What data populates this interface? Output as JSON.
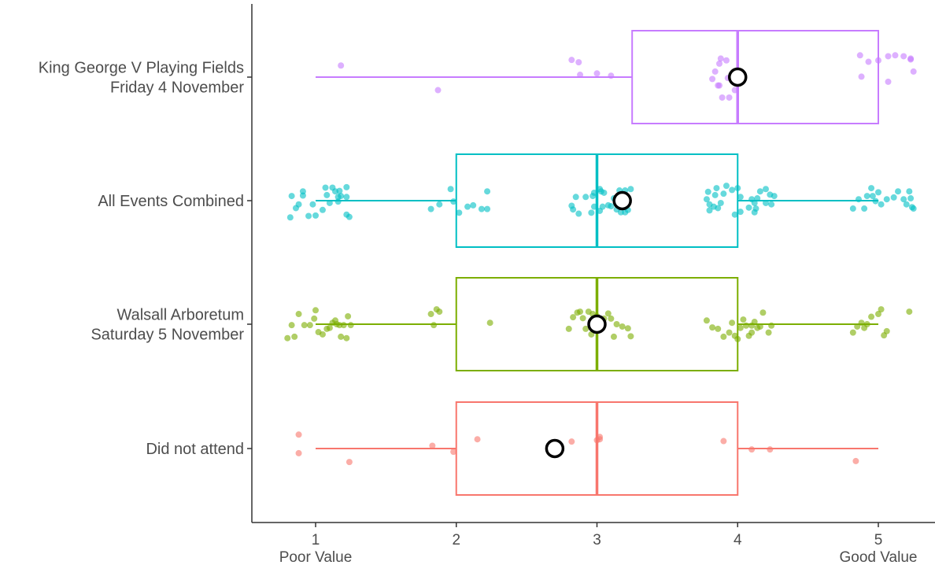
{
  "chart_data": {
    "type": "box",
    "orientation": "horizontal",
    "xlim": [
      0.55,
      5.4
    ],
    "x_ticks": [
      {
        "value": 1,
        "label": "1",
        "sublabel": "Poor Value"
      },
      {
        "value": 2,
        "label": "2",
        "sublabel": ""
      },
      {
        "value": 3,
        "label": "3",
        "sublabel": ""
      },
      {
        "value": 4,
        "label": "4",
        "sublabel": ""
      },
      {
        "value": 5,
        "label": "5",
        "sublabel": "Good Value"
      }
    ],
    "grid": false,
    "legend": "none",
    "groups": [
      {
        "label_lines": [
          "King George V Playing Fields",
          "Friday 4 November"
        ],
        "color": "#c77cff",
        "whisker_low": 1,
        "q1": 3.25,
        "median": 4,
        "q3": 5,
        "whisker_high": 5,
        "mean": 4,
        "points": [
          [
            1.18,
            -0.25
          ],
          [
            1.87,
            0.28
          ],
          [
            2.82,
            -0.37
          ],
          [
            2.87,
            -0.32
          ],
          [
            2.88,
            -0.05
          ],
          [
            3.0,
            -0.08
          ],
          [
            3.1,
            -0.03
          ],
          [
            3.82,
            0.04
          ],
          [
            3.84,
            -0.12
          ],
          [
            3.86,
            0.18
          ],
          [
            3.87,
            -0.29
          ],
          [
            3.88,
            -0.4
          ],
          [
            3.89,
            0.44
          ],
          [
            3.92,
            -0.36
          ],
          [
            3.93,
            0.02
          ],
          [
            3.94,
            0.44
          ],
          [
            3.98,
            0.28
          ],
          [
            3.87,
            0.18
          ],
          [
            4.88,
            -0.01
          ],
          [
            4.93,
            -0.33
          ],
          [
            4.87,
            -0.47
          ],
          [
            5.0,
            -0.36
          ],
          [
            5.07,
            0.1
          ],
          [
            5.07,
            -0.45
          ],
          [
            5.12,
            -0.47
          ],
          [
            5.18,
            -0.45
          ],
          [
            5.23,
            -0.38
          ],
          [
            5.23,
            -0.4
          ],
          [
            5.25,
            -0.12
          ]
        ]
      },
      {
        "label_lines": [
          "All Events Combined"
        ],
        "color": "#00bfc4",
        "whisker_low": 1,
        "q1": 2,
        "median": 3,
        "q3": 4,
        "whisker_high": 5,
        "mean": 3.18,
        "points": [
          [
            0.82,
            0.36
          ],
          [
            0.86,
            0.16
          ],
          [
            0.88,
            0.08
          ],
          [
            0.91,
            -0.11
          ],
          [
            0.83,
            -0.1
          ],
          [
            0.95,
            0.33
          ],
          [
            0.91,
            -0.2
          ],
          [
            1.0,
            0.32
          ],
          [
            0.98,
            0.08
          ],
          [
            1.05,
            0.2
          ],
          [
            1.1,
            0.05
          ],
          [
            1.08,
            -0.12
          ],
          [
            1.14,
            -0.2
          ],
          [
            1.16,
            -0.08
          ],
          [
            1.18,
            -0.1
          ],
          [
            1.22,
            -0.08
          ],
          [
            1.12,
            -0.28
          ],
          [
            1.07,
            -0.28
          ],
          [
            1.17,
            -0.21
          ],
          [
            1.22,
            -0.29
          ],
          [
            1.22,
            0.3
          ],
          [
            1.24,
            0.35
          ],
          [
            1.16,
            0.02
          ],
          [
            1.82,
            0.18
          ],
          [
            1.88,
            0.08
          ],
          [
            1.98,
            0.02
          ],
          [
            1.96,
            -0.25
          ],
          [
            2.02,
            0.26
          ],
          [
            2.08,
            0.13
          ],
          [
            2.12,
            0.1
          ],
          [
            2.18,
            0.18
          ],
          [
            2.22,
            0.18
          ],
          [
            2.22,
            -0.2
          ],
          [
            2.83,
            0.19
          ],
          [
            2.87,
            0.28
          ],
          [
            2.82,
            0.11
          ],
          [
            2.85,
            -0.08
          ],
          [
            2.92,
            -0.08
          ],
          [
            2.96,
            0.26
          ],
          [
            2.98,
            0.13
          ],
          [
            3.02,
            0.22
          ],
          [
            2.97,
            -0.1
          ],
          [
            3.04,
            0.13
          ],
          [
            3.08,
            0.1
          ],
          [
            3.1,
            0.12
          ],
          [
            3.14,
            0.19
          ],
          [
            3.17,
            0.25
          ],
          [
            3.2,
            0.25
          ],
          [
            3.22,
            0.2
          ],
          [
            3.18,
            0.09
          ],
          [
            3.03,
            -0.2
          ],
          [
            3.12,
            -0.05
          ],
          [
            3.16,
            -0.22
          ],
          [
            3.2,
            -0.22
          ],
          [
            3.24,
            -0.25
          ],
          [
            3.05,
            -0.17
          ],
          [
            2.98,
            -0.17
          ],
          [
            3.02,
            -0.25
          ],
          [
            3.8,
            0.21
          ],
          [
            3.83,
            0.13
          ],
          [
            3.78,
            -0.03
          ],
          [
            3.8,
            0.08
          ],
          [
            3.86,
            0.16
          ],
          [
            3.88,
            0.05
          ],
          [
            3.84,
            -0.12
          ],
          [
            3.85,
            -0.27
          ],
          [
            3.79,
            -0.19
          ],
          [
            3.9,
            -0.15
          ],
          [
            3.92,
            -0.32
          ],
          [
            3.96,
            -0.23
          ],
          [
            4.0,
            -0.27
          ],
          [
            4.02,
            -0.08
          ],
          [
            4.02,
            0.24
          ],
          [
            4.08,
            0.15
          ],
          [
            4.12,
            0.05
          ],
          [
            4.14,
            -0.05
          ],
          [
            4.16,
            -0.2
          ],
          [
            4.2,
            -0.25
          ],
          [
            4.23,
            -0.13
          ],
          [
            4.24,
            0.08
          ],
          [
            4.26,
            -0.1
          ],
          [
            4.2,
            0.05
          ],
          [
            4.1,
            -0.03
          ],
          [
            4.12,
            0.25
          ],
          [
            3.98,
            0.3
          ],
          [
            4.13,
            0.17
          ],
          [
            4.82,
            0.17
          ],
          [
            4.86,
            -0.03
          ],
          [
            4.9,
            0.17
          ],
          [
            4.92,
            -0.1
          ],
          [
            4.96,
            -0.1
          ],
          [
            4.98,
            0.01
          ],
          [
            5.02,
            0.08
          ],
          [
            5.0,
            -0.18
          ],
          [
            5.06,
            -0.03
          ],
          [
            4.95,
            -0.27
          ],
          [
            5.11,
            -0.07
          ],
          [
            5.14,
            -0.2
          ],
          [
            5.18,
            -0.03
          ],
          [
            5.2,
            0.08
          ],
          [
            5.22,
            -0.2
          ],
          [
            5.24,
            0.14
          ],
          [
            5.23,
            -0.05
          ],
          [
            5.25,
            0.17
          ]
        ]
      },
      {
        "label_lines": [
          "Walsall Arboretum",
          "Saturday 5 November"
        ],
        "color": "#7cae00",
        "whisker_low": 1,
        "q1": 2,
        "median": 3,
        "q3": 4,
        "whisker_high": 5,
        "mean": 3,
        "points": [
          [
            0.8,
            0.3
          ],
          [
            0.85,
            0.27
          ],
          [
            0.83,
            0.02
          ],
          [
            0.92,
            0.02
          ],
          [
            0.96,
            0.02
          ],
          [
            0.99,
            -0.12
          ],
          [
            1.02,
            0.17
          ],
          [
            1.05,
            0.22
          ],
          [
            1.08,
            0.1
          ],
          [
            1.1,
            0.08
          ],
          [
            1.12,
            -0.03
          ],
          [
            1.15,
            0.0
          ],
          [
            1.17,
            0.02
          ],
          [
            1.2,
            0.02
          ],
          [
            1.22,
            0.3
          ],
          [
            1.18,
            0.27
          ],
          [
            1.23,
            -0.17
          ],
          [
            0.88,
            -0.22
          ],
          [
            1.0,
            -0.3
          ],
          [
            1.25,
            0.02
          ],
          [
            1.14,
            -0.08
          ],
          [
            1.82,
            -0.22
          ],
          [
            1.84,
            0.02
          ],
          [
            1.86,
            -0.32
          ],
          [
            1.88,
            -0.27
          ],
          [
            2.24,
            -0.03
          ],
          [
            2.8,
            0.1
          ],
          [
            2.83,
            -0.15
          ],
          [
            2.86,
            -0.25
          ],
          [
            2.88,
            -0.27
          ],
          [
            2.92,
            0.1
          ],
          [
            2.96,
            0.22
          ],
          [
            2.99,
            0.05
          ],
          [
            3.02,
            -0.08
          ],
          [
            3.04,
            -0.05
          ],
          [
            3.08,
            -0.23
          ],
          [
            3.1,
            -0.12
          ],
          [
            3.14,
            0.0
          ],
          [
            3.18,
            0.05
          ],
          [
            3.22,
            0.09
          ],
          [
            3.24,
            0.26
          ],
          [
            2.94,
            -0.27
          ],
          [
            2.97,
            -0.22
          ],
          [
            3.0,
            -0.17
          ],
          [
            3.05,
            -0.12
          ],
          [
            3.03,
            0.02
          ],
          [
            2.9,
            -0.13
          ],
          [
            3.12,
            0.27
          ],
          [
            3.78,
            -0.08
          ],
          [
            3.82,
            0.07
          ],
          [
            3.86,
            0.1
          ],
          [
            3.9,
            0.27
          ],
          [
            3.94,
            0.18
          ],
          [
            3.98,
            0.25
          ],
          [
            4.0,
            0.32
          ],
          [
            4.02,
            0.08
          ],
          [
            4.06,
            0.03
          ],
          [
            4.1,
            0.18
          ],
          [
            4.12,
            -0.05
          ],
          [
            4.14,
            0.08
          ],
          [
            4.16,
            0.05
          ],
          [
            4.18,
            -0.25
          ],
          [
            4.22,
            0.18
          ],
          [
            4.24,
            0.03
          ],
          [
            3.96,
            -0.03
          ],
          [
            4.04,
            -0.1
          ],
          [
            4.08,
            0.25
          ],
          [
            4.1,
            0.03
          ],
          [
            4.82,
            0.18
          ],
          [
            4.85,
            0.05
          ],
          [
            4.88,
            -0.03
          ],
          [
            4.92,
            0.0
          ],
          [
            4.95,
            -0.16
          ],
          [
            5.0,
            -0.22
          ],
          [
            5.02,
            -0.32
          ],
          [
            5.04,
            0.24
          ],
          [
            5.06,
            0.15
          ],
          [
            5.22,
            -0.27
          ],
          [
            4.9,
            0.08
          ]
        ]
      },
      {
        "label_lines": [
          "Did not attend"
        ],
        "color": "#f8766d",
        "whisker_low": 1,
        "q1": 2,
        "median": 3,
        "q3": 4,
        "whisker_high": 5,
        "mean": 2.7,
        "points": [
          [
            0.88,
            0.1
          ],
          [
            0.88,
            -0.3
          ],
          [
            1.24,
            0.29
          ],
          [
            1.83,
            -0.06
          ],
          [
            1.98,
            0.07
          ],
          [
            2.15,
            -0.2
          ],
          [
            2.82,
            -0.15
          ],
          [
            3.0,
            -0.18
          ],
          [
            3.02,
            -0.25
          ],
          [
            3.02,
            -0.2
          ],
          [
            3.9,
            -0.16
          ],
          [
            4.1,
            0.02
          ],
          [
            4.23,
            0.02
          ],
          [
            4.84,
            0.27
          ]
        ]
      }
    ]
  }
}
